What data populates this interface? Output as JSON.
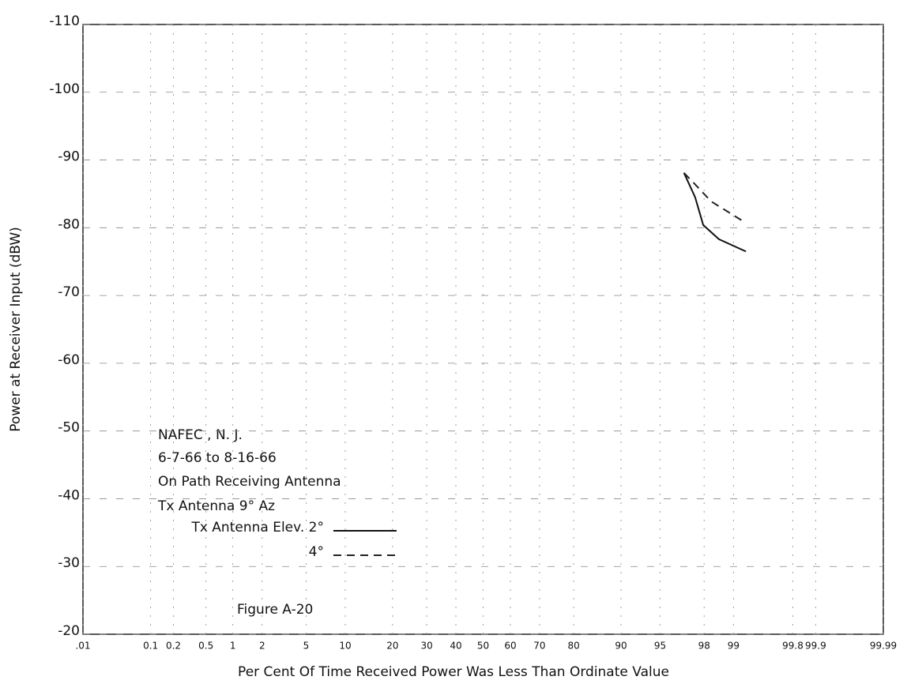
{
  "chart_data": {
    "type": "line",
    "annotations": [
      "NAFEC , N. J.",
      "6-7-66 to 8-16-66",
      "On Path Receiving Antenna",
      "Tx Antenna 9° Az"
    ],
    "figure_label": "Figure A-20",
    "x_label": "Per Cent Of Time Received Power Was Less Than Ordinate Value",
    "y_label": "Power at Receiver Input (dBW)",
    "xscale": "probability",
    "xlim": [
      0.01,
      99.99
    ],
    "xticks": [
      {
        "value": 0.01,
        "label": ".01"
      },
      0.1,
      0.2,
      0.5,
      1,
      2,
      5,
      10,
      20,
      30,
      40,
      50,
      60,
      70,
      80,
      90,
      95,
      98,
      99,
      99.8,
      99.9,
      99.99
    ],
    "ylim": [
      -20,
      -110
    ],
    "yticks": [
      -20,
      -30,
      -40,
      -50,
      -60,
      -70,
      -80,
      -90,
      -100,
      -110
    ],
    "grid": true,
    "series": [
      {
        "name": "Tx Antenna Elev. 2°",
        "color": "#111111",
        "dash": "solid",
        "x": [
          96.9,
          97.56,
          97.96,
          98.58,
          99.27
        ],
        "values": [
          -88.1,
          -84.5,
          -80.4,
          -78.3,
          -76.5
        ]
      },
      {
        "name": "4°",
        "color": "#222222",
        "dash": "dashed",
        "x": [
          96.9,
          97.56,
          98.29,
          99.27
        ],
        "values": [
          -88.1,
          -86.4,
          -83.9,
          -80.7
        ]
      }
    ]
  }
}
